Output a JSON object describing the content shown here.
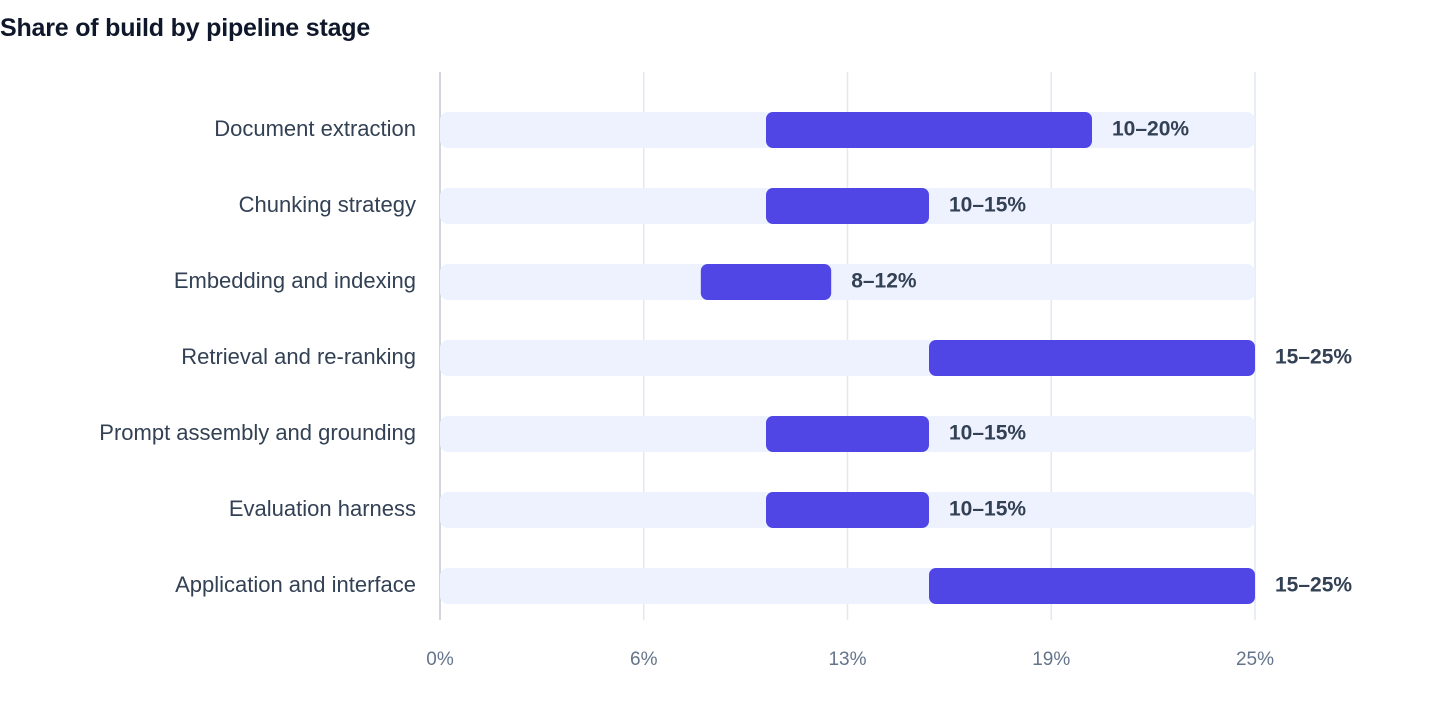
{
  "chart_data": {
    "type": "bar",
    "subtype": "floating-range",
    "orientation": "horizontal",
    "title": "Share of build by pipeline stage",
    "xlabel": "",
    "ylabel": "",
    "xlim": [
      0,
      25
    ],
    "x_ticks": [
      0,
      6.25,
      12.5,
      18.75,
      25
    ],
    "x_tick_labels": [
      "0%",
      "6%",
      "13%",
      "19%",
      "25%"
    ],
    "grid": "vertical",
    "legend": "none",
    "categories": [
      "Document extraction",
      "Chunking strategy",
      "Embedding and indexing",
      "Retrieval and re-ranking",
      "Prompt assembly and grounding",
      "Evaluation harness",
      "Application and interface"
    ],
    "ranges": [
      {
        "low": 10,
        "high": 20,
        "label": "10–20%"
      },
      {
        "low": 10,
        "high": 15,
        "label": "10–15%"
      },
      {
        "low": 8,
        "high": 12,
        "label": "8–12%"
      },
      {
        "low": 15,
        "high": 25,
        "label": "15–25%"
      },
      {
        "low": 10,
        "high": 15,
        "label": "10–15%"
      },
      {
        "low": 10,
        "high": 15,
        "label": "10–15%"
      },
      {
        "low": 15,
        "high": 25,
        "label": "15–25%"
      }
    ],
    "colors": {
      "bar": "#4f46e5",
      "track": "#eef2ff",
      "grid": "#e2e8f0",
      "axis": "#d1d5db"
    }
  }
}
